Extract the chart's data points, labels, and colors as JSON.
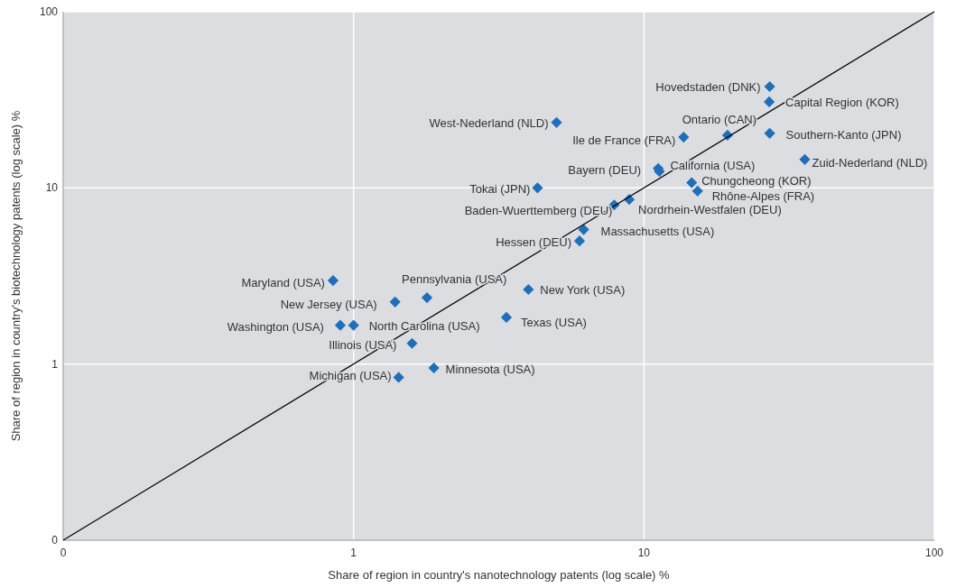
{
  "chart_data": {
    "type": "scatter",
    "xlabel": "Share of region in country's nanotechnology patents  (log scale) %",
    "ylabel": "Share of region in country's biotechnology patents  (log scale) %",
    "log": "xy",
    "grid": true,
    "marker": "diamond",
    "xlim": [
      0.1,
      100
    ],
    "xticks": [
      {
        "value": 0.1,
        "label": "0"
      },
      1,
      10,
      100
    ],
    "ylim": [
      0.1,
      100
    ],
    "yticks": [
      {
        "value": 0.1,
        "label": "0"
      },
      1,
      10,
      100
    ],
    "x": [
      27.1,
      27,
      5.0,
      19.4,
      13.7,
      27.1,
      35.8,
      11.2,
      11.3,
      14.6,
      15.3,
      4.3,
      7.9,
      8.9,
      6.2,
      6.0,
      0.85,
      1.79,
      4.0,
      1.39,
      0.9,
      1.0,
      3.36,
      1.59,
      1.89,
      1.43
    ],
    "series": [
      {
        "color": "#1f6fb8",
        "values": [
          37.6,
          30.8,
          23.5,
          19.9,
          19.4,
          20.4,
          14.5,
          12.9,
          12.4,
          10.7,
          9.6,
          10.0,
          8.0,
          8.6,
          5.8,
          5.0,
          2.98,
          2.38,
          2.65,
          2.25,
          1.66,
          1.66,
          1.84,
          1.31,
          0.95,
          0.84
        ]
      },
      {
        "type": "line",
        "marker": "none",
        "color": "#000000",
        "x": [
          0.1,
          100
        ],
        "values": [
          0.1,
          100
        ]
      }
    ],
    "annotations": [
      {
        "text": "Hovedstaden (DNK)",
        "x": 27.1,
        "y": 37.6
      },
      {
        "text": "Capital Region (KOR)",
        "x": 27,
        "y": 30.8
      },
      {
        "text": "West-Nederland (NLD)",
        "x": 5.0,
        "y": 23.5
      },
      {
        "text": "Ontario (CAN)",
        "x": 19.4,
        "y": 19.9
      },
      {
        "text": "Ile de France (FRA)",
        "x": 13.7,
        "y": 19.4
      },
      {
        "text": "Southern-Kanto (JPN)",
        "x": 27.1,
        "y": 20.4
      },
      {
        "text": "Zuid-Nederland (NLD)",
        "x": 35.8,
        "y": 14.5
      },
      {
        "text": "Bayern (DEU)",
        "x": 11.2,
        "y": 12.9
      },
      {
        "text": "California (USA)",
        "x": 11.3,
        "y": 12.4
      },
      {
        "text": "Chungcheong (KOR)",
        "x": 14.6,
        "y": 10.7
      },
      {
        "text": "Rhône-Alpes (FRA)",
        "x": 15.3,
        "y": 9.6
      },
      {
        "text": "Tokai (JPN)",
        "x": 4.3,
        "y": 10.0
      },
      {
        "text": "Baden-Wuerttemberg (DEU)",
        "x": 7.9,
        "y": 8.0
      },
      {
        "text": "Nordrhein-Westfalen (DEU)",
        "x": 8.9,
        "y": 8.6
      },
      {
        "text": "Massachusetts (USA)",
        "x": 6.2,
        "y": 5.8
      },
      {
        "text": "Hessen (DEU)",
        "x": 6.0,
        "y": 5.0
      },
      {
        "text": "Maryland (USA)",
        "x": 0.85,
        "y": 2.98
      },
      {
        "text": "Pennsylvania (USA)",
        "x": 1.79,
        "y": 2.38
      },
      {
        "text": "New York (USA)",
        "x": 4.0,
        "y": 2.65
      },
      {
        "text": "New Jersey (USA)",
        "x": 1.39,
        "y": 2.25
      },
      {
        "text": "Washington (USA)",
        "x": 0.9,
        "y": 1.66
      },
      {
        "text": "North Carolina (USA)",
        "x": 1.0,
        "y": 1.66
      },
      {
        "text": "Texas (USA)",
        "x": 3.36,
        "y": 1.84
      },
      {
        "text": "Illinois (USA)",
        "x": 1.59,
        "y": 1.31
      },
      {
        "text": "Minnesota (USA)",
        "x": 1.89,
        "y": 0.95
      },
      {
        "text": "Michigan (USA)",
        "x": 1.43,
        "y": 0.84
      }
    ]
  }
}
